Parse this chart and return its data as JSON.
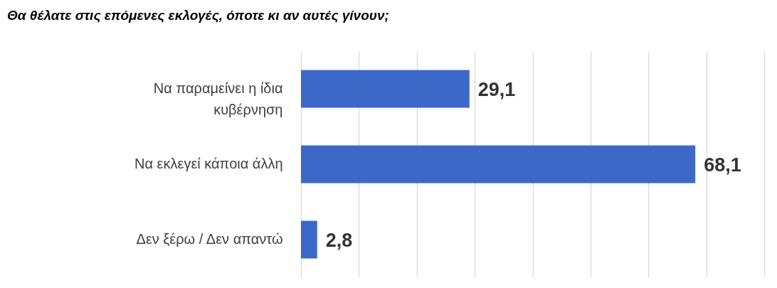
{
  "chart_data": {
    "type": "bar",
    "orientation": "horizontal",
    "title": "Θα θέλατε στις επόμενες εκλογές, όποτε κι αν αυτές γίνουν;",
    "categories": [
      "Να παραμείνει η ίδια κυβέρνηση",
      "Να εκλεγεί κάποια άλλη",
      "Δεν ξέρω / Δεν απαντώ"
    ],
    "values": [
      29.1,
      68.1,
      2.8
    ],
    "value_labels": [
      "29,1",
      "68,1",
      "2,8"
    ],
    "color": "#3c68c8",
    "xlim": [
      0,
      80
    ],
    "xticks": [
      {
        "value": 0,
        "label": null
      },
      {
        "value": 10,
        "label": null
      },
      {
        "value": 20,
        "label": null
      },
      {
        "value": 30,
        "label": null
      },
      {
        "value": 40,
        "label": null
      },
      {
        "value": 50,
        "label": null
      },
      {
        "value": 60,
        "label": null
      },
      {
        "value": 70,
        "label": null
      },
      {
        "value": 80,
        "label": null
      }
    ],
    "grid": "x",
    "tick_labels": "y"
  }
}
